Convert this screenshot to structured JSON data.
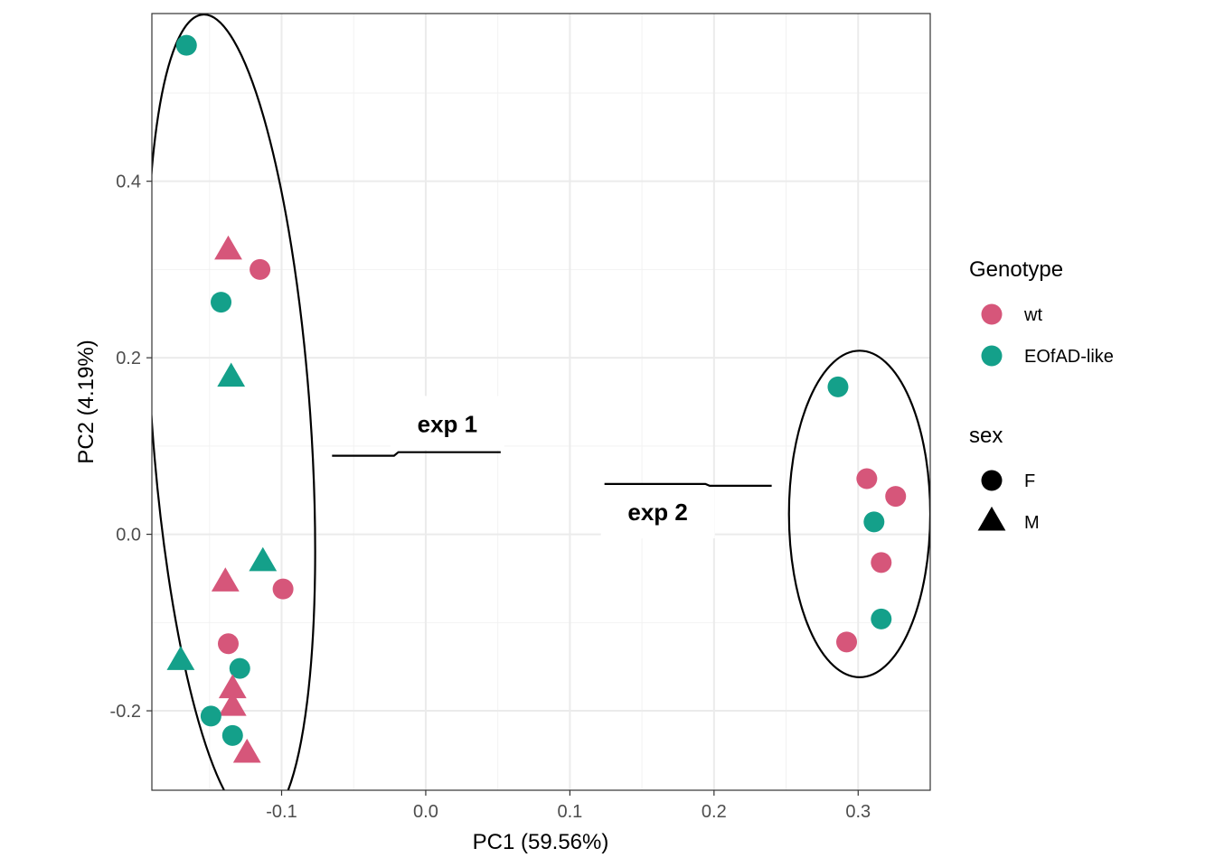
{
  "colors": {
    "wt": "#D6567A",
    "EOfAD-like": "#14A08A",
    "grid_major": "#EBEBEB",
    "grid_minor": "#F2F2F2",
    "panel_border": "#333333",
    "ellipse": "#000000"
  },
  "chart_data": {
    "type": "scatter",
    "xlabel": "PC1 (59.56%)",
    "ylabel": "PC2 (4.19%)",
    "xlim": [
      -0.19,
      0.35
    ],
    "ylim": [
      -0.29,
      0.59
    ],
    "x_ticks": [
      {
        "value": -0.1,
        "label": "-0.1"
      },
      {
        "value": 0.0,
        "label": "0.0"
      },
      {
        "value": 0.1,
        "label": "0.1"
      },
      {
        "value": 0.2,
        "label": "0.2"
      },
      {
        "value": 0.3,
        "label": "0.3"
      }
    ],
    "y_ticks": [
      {
        "value": -0.2,
        "label": "-0.2"
      },
      {
        "value": 0.0,
        "label": "0.0"
      },
      {
        "value": 0.2,
        "label": "0.2"
      },
      {
        "value": 0.4,
        "label": "0.4"
      }
    ],
    "grid": true,
    "legend_position": "right",
    "legends": [
      {
        "title": "Genotype",
        "entries": [
          {
            "label": "wt",
            "key": "wt",
            "shape": "circle"
          },
          {
            "label": "EOfAD-like",
            "key": "EOfAD-like",
            "shape": "circle"
          }
        ]
      },
      {
        "title": "sex",
        "entries": [
          {
            "label": "F",
            "key": "F",
            "shape": "circle"
          },
          {
            "label": "M",
            "key": "M",
            "shape": "triangle"
          }
        ]
      }
    ],
    "points": [
      {
        "x": -0.166,
        "y": 0.554,
        "genotype": "EOfAD-like",
        "sex": "F"
      },
      {
        "x": -0.137,
        "y": 0.322,
        "genotype": "wt",
        "sex": "M"
      },
      {
        "x": -0.115,
        "y": 0.3,
        "genotype": "wt",
        "sex": "F"
      },
      {
        "x": -0.142,
        "y": 0.263,
        "genotype": "EOfAD-like",
        "sex": "F"
      },
      {
        "x": -0.135,
        "y": 0.178,
        "genotype": "EOfAD-like",
        "sex": "M"
      },
      {
        "x": -0.113,
        "y": -0.031,
        "genotype": "EOfAD-like",
        "sex": "M"
      },
      {
        "x": -0.139,
        "y": -0.054,
        "genotype": "wt",
        "sex": "M"
      },
      {
        "x": -0.099,
        "y": -0.062,
        "genotype": "wt",
        "sex": "F"
      },
      {
        "x": -0.137,
        "y": -0.124,
        "genotype": "wt",
        "sex": "F"
      },
      {
        "x": -0.17,
        "y": -0.143,
        "genotype": "EOfAD-like",
        "sex": "M"
      },
      {
        "x": -0.129,
        "y": -0.152,
        "genotype": "EOfAD-like",
        "sex": "F"
      },
      {
        "x": -0.134,
        "y": -0.175,
        "genotype": "wt",
        "sex": "M"
      },
      {
        "x": -0.134,
        "y": -0.195,
        "genotype": "wt",
        "sex": "M"
      },
      {
        "x": -0.149,
        "y": -0.206,
        "genotype": "EOfAD-like",
        "sex": "F"
      },
      {
        "x": -0.134,
        "y": -0.228,
        "genotype": "EOfAD-like",
        "sex": "F"
      },
      {
        "x": -0.124,
        "y": -0.248,
        "genotype": "wt",
        "sex": "M"
      },
      {
        "x": 0.286,
        "y": 0.167,
        "genotype": "EOfAD-like",
        "sex": "F"
      },
      {
        "x": 0.306,
        "y": 0.063,
        "genotype": "wt",
        "sex": "F"
      },
      {
        "x": 0.326,
        "y": 0.043,
        "genotype": "wt",
        "sex": "F"
      },
      {
        "x": 0.311,
        "y": 0.014,
        "genotype": "EOfAD-like",
        "sex": "F"
      },
      {
        "x": 0.316,
        "y": -0.032,
        "genotype": "wt",
        "sex": "F"
      },
      {
        "x": 0.316,
        "y": -0.096,
        "genotype": "EOfAD-like",
        "sex": "F"
      },
      {
        "x": 0.292,
        "y": -0.122,
        "genotype": "wt",
        "sex": "F"
      }
    ],
    "ellipses": [
      {
        "label": "exp 1",
        "cx": -0.135,
        "cy": 0.13,
        "rx": 0.055,
        "ry": 0.46,
        "tilt_deg": -4
      },
      {
        "label": "exp 2",
        "cx": 0.301,
        "cy": 0.023,
        "rx": 0.049,
        "ry": 0.185,
        "tilt_deg": 0
      }
    ],
    "annotations": [
      {
        "text": "exp 1",
        "x": 0.015,
        "y": 0.125,
        "leader": [
          [
            -0.065,
            0.089
          ],
          [
            -0.022,
            0.089
          ],
          [
            -0.019,
            0.093
          ],
          [
            0.052,
            0.093
          ]
        ]
      },
      {
        "text": "exp 2",
        "x": 0.161,
        "y": 0.025,
        "leader": [
          [
            0.124,
            0.057
          ],
          [
            0.194,
            0.057
          ],
          [
            0.197,
            0.055
          ],
          [
            0.24,
            0.055
          ]
        ]
      }
    ]
  }
}
